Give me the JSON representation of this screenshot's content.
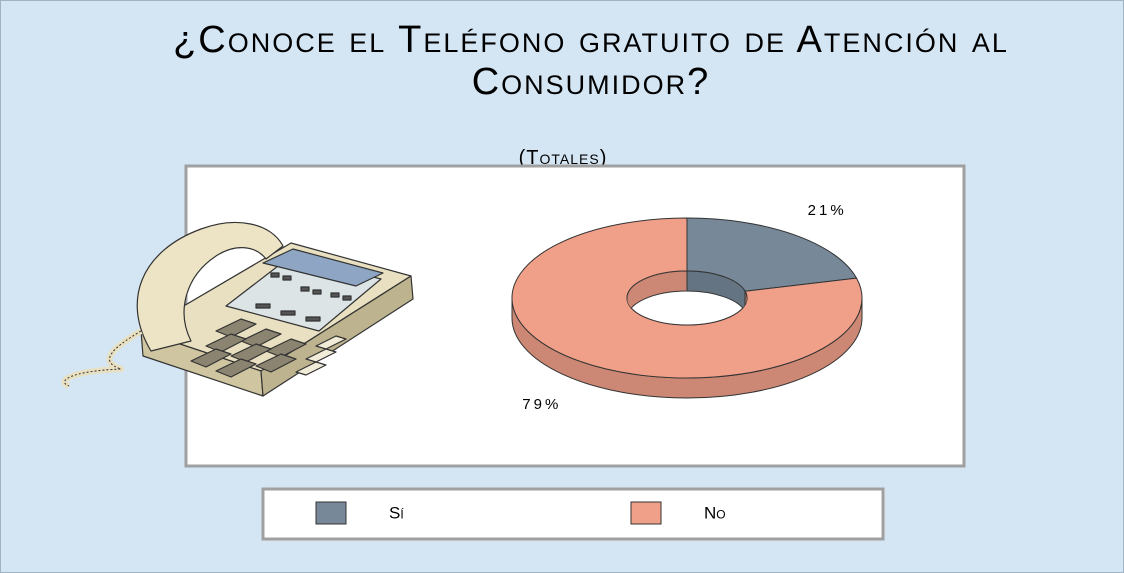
{
  "chart_data": {
    "type": "pie",
    "title": "¿Conoce el Teléfono gratuito de Atención al Consumidor?",
    "subtitle": "(Totales)",
    "categories": [
      "Sí",
      "No"
    ],
    "values": [
      21,
      79
    ],
    "value_labels": [
      "21%",
      "79%"
    ],
    "colors": [
      "#778899",
      "#f0a088"
    ]
  }
}
